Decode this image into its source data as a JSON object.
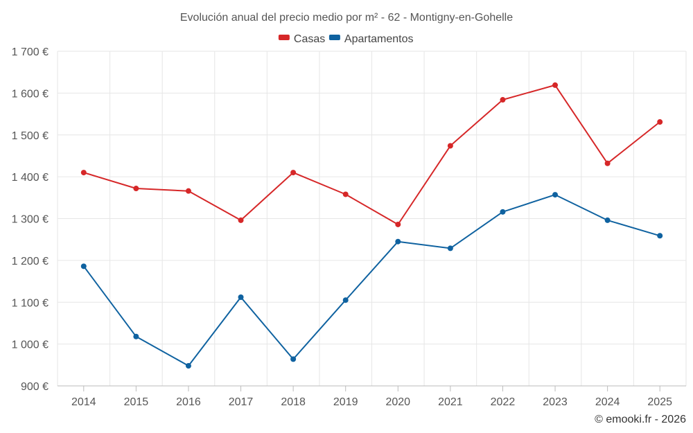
{
  "chart_data": {
    "type": "line",
    "title": "Evolución anual del precio medio por m² - 62 - Montigny-en-Gohelle",
    "categories": [
      "2014",
      "2015",
      "2016",
      "2017",
      "2018",
      "2019",
      "2020",
      "2021",
      "2022",
      "2023",
      "2024",
      "2025"
    ],
    "series": [
      {
        "name": "Casas",
        "color": "#d62728",
        "values": [
          1410,
          1372,
          1366,
          1296,
          1410,
          1358,
          1286,
          1474,
          1584,
          1619,
          1432,
          1531
        ]
      },
      {
        "name": "Apartamentos",
        "color": "#0f62a0",
        "values": [
          1186,
          1018,
          948,
          1112,
          964,
          1105,
          1245,
          1229,
          1316,
          1357,
          1296,
          1259
        ]
      }
    ],
    "ylim": [
      900,
      1700
    ],
    "yticks": [
      900,
      1000,
      1100,
      1200,
      1300,
      1400,
      1500,
      1600,
      1700
    ],
    "ytick_labels": [
      "900 €",
      "1 000 €",
      "1 100 €",
      "1 200 €",
      "1 300 €",
      "1 400 €",
      "1 500 €",
      "1 600 €",
      "1 700 €"
    ],
    "xlabel": "",
    "ylabel": "",
    "grid": true,
    "legend_position": "top-center"
  },
  "credit": "© emooki.fr - 2026"
}
